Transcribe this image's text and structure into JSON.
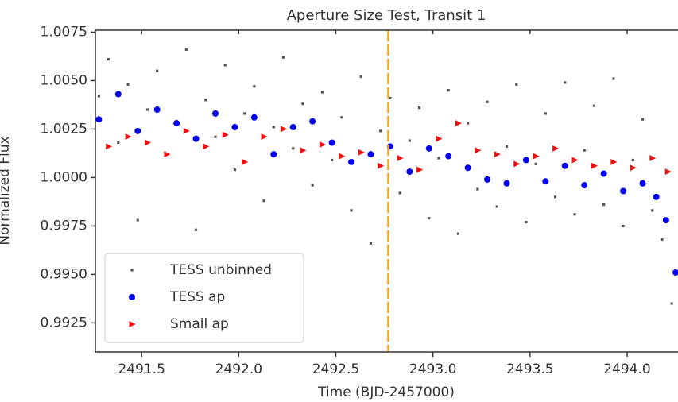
{
  "chart_data": {
    "type": "scatter",
    "title": "Aperture Size Test, Transit 1",
    "x_label": "Time (BJD-2457000)",
    "y_label": "Normalized Flux",
    "xlim": [
      2491.262,
      2494.262
    ],
    "ylim": [
      0.991,
      1.0076
    ],
    "xticks": [
      2491.5,
      {
        "value": 2492.0,
        "label": "2492.0"
      },
      2492.5,
      {
        "value": 2493.0,
        "label": "2493.0"
      },
      2493.5,
      {
        "value": 2494.0,
        "label": "2494.0"
      }
    ],
    "yticks": [
      1.0075,
      {
        "value": 1.005,
        "label": "1.0050"
      },
      1.0025,
      {
        "value": 1.0,
        "label": "1.0000"
      },
      0.9975,
      {
        "value": 0.995,
        "label": "0.9950"
      },
      0.9925
    ],
    "vline": {
      "x": 2492.77,
      "color": "#f5a623"
    },
    "legend": "lower left",
    "series": [
      {
        "name": "TESS unbinned",
        "color": "#555555",
        "marker": "square",
        "x": [
          2491.28,
          2491.33,
          2491.38,
          2491.43,
          2491.48,
          2491.53,
          2491.58,
          2491.63,
          2491.68,
          2491.73,
          2491.78,
          2491.83,
          2491.88,
          2491.93,
          2491.98,
          2492.03,
          2492.08,
          2492.13,
          2492.18,
          2492.23,
          2492.28,
          2492.33,
          2492.38,
          2492.43,
          2492.48,
          2492.53,
          2492.58,
          2492.63,
          2492.68,
          2492.73,
          2492.78,
          2492.83,
          2492.88,
          2492.93,
          2492.98,
          2493.03,
          2493.08,
          2493.13,
          2493.18,
          2493.23,
          2493.28,
          2493.33,
          2493.38,
          2493.43,
          2493.48,
          2493.53,
          2493.58,
          2493.63,
          2493.68,
          2493.73,
          2493.78,
          2493.83,
          2493.88,
          2493.93,
          2493.98,
          2494.03,
          2494.08,
          2494.13,
          2494.18,
          2494.23
        ],
        "values": [
          1.0042,
          1.0061,
          1.0018,
          1.0048,
          0.9978,
          1.0035,
          1.0055,
          1.0012,
          1.0029,
          1.0066,
          0.9973,
          1.004,
          1.0021,
          1.0058,
          1.0004,
          1.0033,
          1.0047,
          0.9988,
          1.0026,
          1.0062,
          1.0015,
          1.0038,
          0.9996,
          1.0044,
          1.0009,
          1.0031,
          0.9983,
          1.0052,
          0.9966,
          1.0024,
          1.0041,
          0.9992,
          1.0019,
          1.0036,
          0.9979,
          1.001,
          1.0045,
          0.9971,
          1.0028,
          0.9994,
          1.0039,
          0.9985,
          1.0016,
          1.0048,
          0.9977,
          1.0007,
          1.0033,
          0.999,
          1.0049,
          0.9981,
          1.0014,
          1.0037,
          0.9986,
          1.0051,
          0.9975,
          1.0009,
          1.003,
          0.9983,
          0.9968,
          0.9935
        ]
      },
      {
        "name": "TESS ap",
        "color": "#0000ee",
        "marker": "circle",
        "x": [
          2491.28,
          2491.38,
          2491.48,
          2491.58,
          2491.68,
          2491.78,
          2491.88,
          2491.98,
          2492.08,
          2492.18,
          2492.28,
          2492.38,
          2492.48,
          2492.58,
          2492.68,
          2492.78,
          2492.88,
          2492.98,
          2493.08,
          2493.18,
          2493.28,
          2493.38,
          2493.48,
          2493.58,
          2493.68,
          2493.78,
          2493.88,
          2493.98,
          2494.08,
          2494.15,
          2494.2,
          2494.25
        ],
        "values": [
          1.003,
          1.0043,
          1.0024,
          1.0035,
          1.0028,
          1.002,
          1.0033,
          1.0026,
          1.0031,
          1.0012,
          1.0026,
          1.0029,
          1.0018,
          1.0008,
          1.0012,
          1.0016,
          1.0003,
          1.0015,
          1.0011,
          1.0005,
          0.9999,
          0.9997,
          1.0009,
          0.9998,
          1.0006,
          0.9996,
          1.0002,
          0.9993,
          0.9997,
          0.999,
          0.9978,
          0.9951
        ]
      },
      {
        "name": "Small ap",
        "color": "#ee1111",
        "marker": "triangle",
        "x": [
          2491.33,
          2491.43,
          2491.53,
          2491.63,
          2491.73,
          2491.83,
          2491.93,
          2492.03,
          2492.13,
          2492.23,
          2492.33,
          2492.43,
          2492.53,
          2492.63,
          2492.73,
          2492.83,
          2492.93,
          2493.03,
          2493.13,
          2493.23,
          2493.33,
          2493.43,
          2493.53,
          2493.63,
          2493.73,
          2493.83,
          2493.93,
          2494.03,
          2494.13,
          2494.21
        ],
        "values": [
          1.0016,
          1.0021,
          1.0018,
          1.0012,
          1.0024,
          1.0016,
          1.0022,
          1.0008,
          1.0021,
          1.0025,
          1.0014,
          1.0017,
          1.0011,
          1.0013,
          1.0006,
          1.001,
          1.0004,
          1.002,
          1.0028,
          1.0014,
          1.0012,
          1.0007,
          1.0011,
          1.0015,
          1.0009,
          1.0006,
          1.0008,
          1.0005,
          1.001,
          1.0003
        ]
      }
    ]
  }
}
